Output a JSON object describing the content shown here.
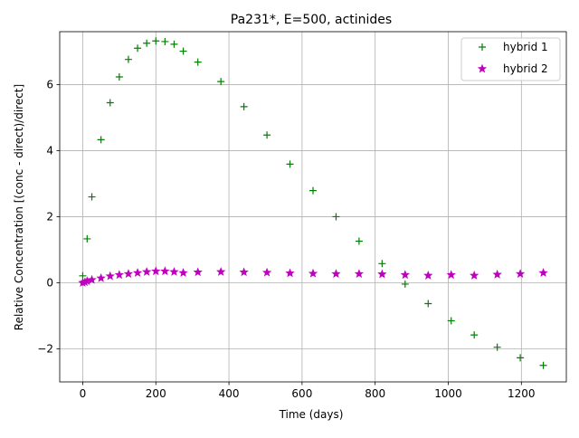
{
  "chart_data": {
    "type": "scatter",
    "title": "Pa231*, E=500, actinides",
    "xlabel": "Time (days)",
    "ylabel": "Relative Concentration [(conc - direct)/direct]",
    "xlim": [
      -63,
      1323
    ],
    "ylim": [
      -3.0,
      7.6
    ],
    "xticks": [
      0,
      200,
      400,
      600,
      800,
      1000,
      1200
    ],
    "xtick_labels": [
      "0",
      "200",
      "400",
      "600",
      "800",
      "1000",
      "1200"
    ],
    "yticks": [
      -2,
      0,
      2,
      4,
      6
    ],
    "ytick_labels": [
      "−2",
      "0",
      "2",
      "4",
      "6"
    ],
    "grid": true,
    "legend_position": "top-right",
    "series": [
      {
        "name": "hybrid 1",
        "marker": "plus",
        "color": "#008000",
        "points": [
          [
            0,
            0.21
          ],
          [
            12,
            1.33
          ],
          [
            25,
            2.6
          ],
          [
            50,
            4.33
          ],
          [
            75,
            5.45
          ],
          [
            100,
            6.23
          ],
          [
            125,
            6.76
          ],
          [
            150,
            7.1
          ],
          [
            175,
            7.25
          ],
          [
            200,
            7.32
          ],
          [
            225,
            7.3
          ],
          [
            250,
            7.22
          ],
          [
            275,
            7.01
          ],
          [
            315,
            6.68
          ],
          [
            378,
            6.09
          ],
          [
            441,
            5.33
          ],
          [
            504,
            4.47
          ],
          [
            567,
            3.59
          ],
          [
            630,
            2.79
          ],
          [
            693,
            2.0
          ],
          [
            756,
            1.26
          ],
          [
            819,
            0.58
          ],
          [
            882,
            -0.04
          ],
          [
            945,
            -0.63
          ],
          [
            1008,
            -1.15
          ],
          [
            1071,
            -1.58
          ],
          [
            1134,
            -1.95
          ],
          [
            1197,
            -2.27
          ],
          [
            1260,
            -2.5
          ]
        ]
      },
      {
        "name": "hybrid 2",
        "marker": "star",
        "color": "#bf00bf",
        "points": [
          [
            0,
            0.0
          ],
          [
            6,
            0.02
          ],
          [
            12,
            0.05
          ],
          [
            25,
            0.09
          ],
          [
            50,
            0.14
          ],
          [
            75,
            0.2
          ],
          [
            100,
            0.24
          ],
          [
            125,
            0.27
          ],
          [
            150,
            0.3
          ],
          [
            175,
            0.33
          ],
          [
            200,
            0.35
          ],
          [
            225,
            0.35
          ],
          [
            250,
            0.33
          ],
          [
            275,
            0.3
          ],
          [
            315,
            0.32
          ],
          [
            378,
            0.33
          ],
          [
            441,
            0.32
          ],
          [
            504,
            0.31
          ],
          [
            567,
            0.29
          ],
          [
            630,
            0.28
          ],
          [
            693,
            0.27
          ],
          [
            756,
            0.27
          ],
          [
            819,
            0.26
          ],
          [
            882,
            0.24
          ],
          [
            945,
            0.22
          ],
          [
            1008,
            0.24
          ],
          [
            1071,
            0.22
          ],
          [
            1134,
            0.25
          ],
          [
            1197,
            0.27
          ],
          [
            1260,
            0.3
          ]
        ]
      }
    ]
  }
}
